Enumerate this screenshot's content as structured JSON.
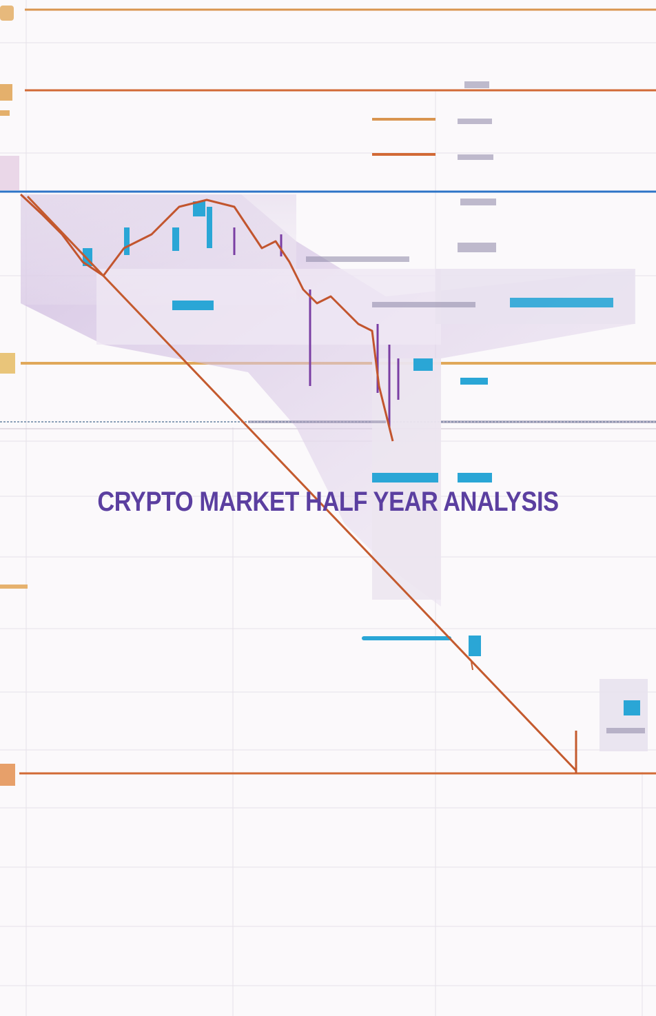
{
  "title": "CRYPTO MARKET HALF YEAR ANALYSIS",
  "colors": {
    "background": "#fbf9fb",
    "title": "#5b3fa0",
    "orange_line": "#d26a36",
    "gold_line": "#e0a85a",
    "blue_line": "#2d74c7",
    "cyan": "#2aa6d6",
    "purple_wash": "#c9b3dc",
    "grid": "#e6e1e8"
  },
  "icons": [
    "candlestick-chart-graphic",
    "downtrend-line-graphic"
  ]
}
